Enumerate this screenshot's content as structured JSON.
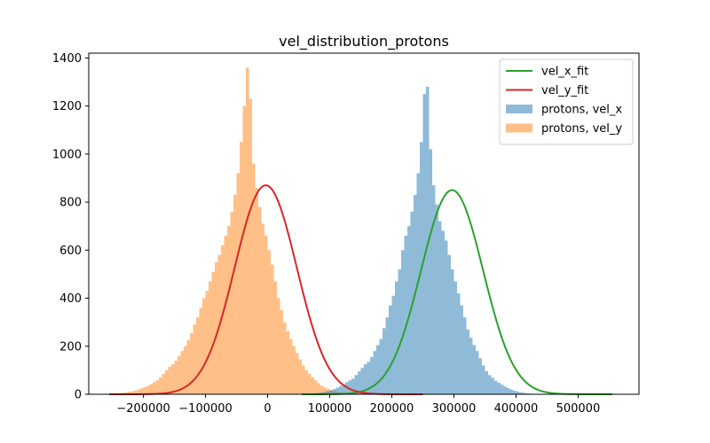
{
  "chart_data": {
    "type": "bar",
    "title": "vel_distribution_protons",
    "xlabel": "",
    "ylabel": "",
    "xlim": [
      -288000,
      598000
    ],
    "ylim": [
      0,
      1420
    ],
    "xticks": [
      -200000,
      -100000,
      0,
      100000,
      200000,
      300000,
      400000,
      500000
    ],
    "xtick_labels": [
      "−200000",
      "−100000",
      "0",
      "100000",
      "200000",
      "300000",
      "400000",
      "500000"
    ],
    "yticks": [
      0,
      200,
      400,
      600,
      800,
      1000,
      1200,
      1400
    ],
    "ytick_labels": [
      "0",
      "200",
      "400",
      "600",
      "800",
      "1000",
      "1200",
      "1400"
    ],
    "grid": false,
    "legend_position": "top-right",
    "legend": [
      {
        "label": "vel_x_fit",
        "kind": "line",
        "color": "#2ca02c"
      },
      {
        "label": "vel_y_fit",
        "kind": "line",
        "color": "#d62728"
      },
      {
        "label": "protons, vel_x",
        "kind": "patch",
        "color": "#1f77b4"
      },
      {
        "label": "protons, vel_y",
        "kind": "patch",
        "color": "#ff7f0e"
      }
    ],
    "series": [
      {
        "name": "protons, vel_y",
        "kind": "histogram",
        "color": "#ff7f0e",
        "alpha": 0.5,
        "bin_start": -255000,
        "bin_width": 5000,
        "counts": [
          2,
          3,
          4,
          5,
          6,
          8,
          10,
          12,
          15,
          20,
          25,
          30,
          35,
          42,
          50,
          58,
          70,
          85,
          100,
          115,
          125,
          140,
          160,
          180,
          200,
          225,
          255,
          290,
          320,
          360,
          400,
          430,
          470,
          510,
          550,
          580,
          620,
          660,
          700,
          760,
          830,
          920,
          1050,
          1200,
          1360,
          1230,
          960,
          860,
          780,
          710,
          660,
          600,
          540,
          470,
          400,
          350,
          300,
          262,
          230,
          200,
          172,
          145,
          120,
          100,
          85,
          70,
          58,
          46,
          36,
          28,
          22,
          17,
          13,
          10,
          8,
          6,
          5,
          4,
          3,
          2,
          2
        ]
      },
      {
        "name": "protons, vel_x",
        "kind": "histogram",
        "color": "#1f77b4",
        "alpha": 0.5,
        "bin_start": 75000,
        "bin_width": 5000,
        "counts": [
          4,
          6,
          8,
          10,
          13,
          17,
          22,
          28,
          35,
          42,
          50,
          58,
          65,
          80,
          95,
          110,
          125,
          135,
          155,
          180,
          205,
          230,
          275,
          320,
          370,
          410,
          470,
          520,
          600,
          660,
          700,
          760,
          830,
          920,
          1050,
          1250,
          1280,
          1020,
          870,
          790,
          720,
          680,
          640,
          580,
          520,
          470,
          420,
          370,
          320,
          270,
          235,
          205,
          180,
          150,
          120,
          96,
          80,
          68,
          56,
          48,
          40,
          32,
          26,
          20,
          15,
          12,
          8,
          6,
          4,
          3
        ]
      },
      {
        "name": "vel_x_fit",
        "kind": "gaussian",
        "color": "#2ca02c",
        "amplitude": 850,
        "mean": 297000,
        "sigma": 50000,
        "range": [
          55000,
          555000
        ]
      },
      {
        "name": "vel_y_fit",
        "kind": "gaussian",
        "color": "#d62728",
        "amplitude": 870,
        "mean": -3000,
        "sigma": 50000,
        "range": [
          -255000,
          250000
        ]
      }
    ]
  }
}
